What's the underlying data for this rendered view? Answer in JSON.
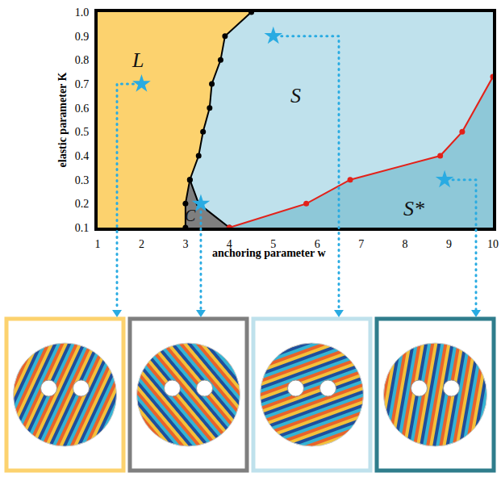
{
  "chart_data": {
    "type": "line",
    "xlabel": "anchoring parameter w",
    "ylabel": "elastic parameter K",
    "xlim": [
      1,
      10
    ],
    "ylim": [
      0.1,
      1.0
    ],
    "xticks": [
      1,
      2,
      3,
      4,
      5,
      6,
      7,
      8,
      9,
      10
    ],
    "yticks": [
      0.1,
      0.2,
      0.3,
      0.4,
      0.5,
      0.6,
      0.7,
      0.8,
      0.9,
      {
        "value": 1.0,
        "label": "1.0"
      }
    ],
    "grid": false,
    "regions": [
      {
        "label": "S",
        "color": "#bfe1ec",
        "x": [
          1,
          10,
          10,
          1
        ],
        "y": [
          0.1,
          0.1,
          1.0,
          1.0
        ],
        "label_at": [
          5.5,
          0.65
        ]
      },
      {
        "label": "L",
        "color": "#fcd26e",
        "x": [
          1,
          3.0,
          3.0,
          3.1,
          3.3,
          3.4,
          3.55,
          3.6,
          3.8,
          3.9,
          4.5,
          1
        ],
        "y": [
          0.1,
          0.1,
          0.2,
          0.3,
          0.4,
          0.5,
          0.6,
          0.7,
          0.8,
          0.9,
          1.0,
          1.0
        ],
        "label_at": [
          1.9,
          0.8
        ]
      },
      {
        "label": "C",
        "color": "#7f7f7f",
        "x": [
          3.0,
          3.0,
          3.1,
          3.3,
          4.0
        ],
        "y": [
          0.1,
          0.2,
          0.3,
          0.2,
          0.1
        ],
        "label_at": [
          3.12,
          0.15
        ]
      },
      {
        "label": "S*",
        "color": "#8ec8d8",
        "x": [
          4.0,
          5.75,
          6.75,
          8.8,
          9.3,
          10,
          10
        ],
        "y": [
          0.1,
          0.2,
          0.3,
          0.4,
          0.5,
          0.73,
          0.1
        ],
        "label_at": [
          8.2,
          0.18
        ]
      }
    ],
    "series": [
      {
        "color": "#000000",
        "marker": "circle",
        "line_style": "solid",
        "x": [
          3.0,
          3.0,
          3.1,
          3.3,
          3.4,
          3.55,
          3.6,
          3.8,
          3.9,
          4.5
        ],
        "values": [
          0.1,
          0.2,
          0.3,
          0.4,
          0.5,
          0.6,
          0.7,
          0.8,
          0.9,
          1.0
        ]
      },
      {
        "color": "#000000",
        "marker": "circle",
        "line_style": "solid",
        "x": [
          3.1,
          3.3,
          4.0
        ],
        "values": [
          0.3,
          0.2,
          0.1
        ]
      },
      {
        "color": "#e32119",
        "marker": "circle",
        "line_style": "solid",
        "x": [
          4.0,
          5.75,
          6.75,
          8.8,
          9.3,
          10
        ],
        "values": [
          0.1,
          0.2,
          0.3,
          0.4,
          0.5,
          0.73
        ]
      }
    ],
    "stars": {
      "color": "#29abe2",
      "marker": "star",
      "x": [
        2.0,
        3.35,
        5.0,
        8.9
      ],
      "values": [
        0.7,
        0.2,
        0.9,
        0.3
      ]
    }
  }
}
